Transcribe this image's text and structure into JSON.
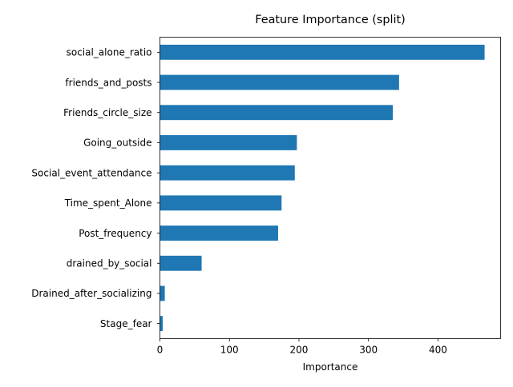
{
  "chart_data": {
    "type": "bar",
    "orientation": "horizontal",
    "title": "Feature Importance (split)",
    "xlabel": "Importance",
    "ylabel": "",
    "categories": [
      "social_alone_ratio",
      "friends_and_posts",
      "Friends_circle_size",
      "Going_outside",
      "Social_event_attendance",
      "Time_spent_Alone",
      "Post_frequency",
      "drained_by_social",
      "Drained_after_socializing",
      "Stage_fear"
    ],
    "values": [
      467,
      344,
      335,
      197,
      194,
      175,
      170,
      60,
      7,
      4
    ],
    "xlim": [
      0,
      490
    ],
    "xticks": [
      0,
      100,
      200,
      300,
      400
    ],
    "grid": false,
    "legend": "none",
    "bar_color": "#1f77b4"
  }
}
